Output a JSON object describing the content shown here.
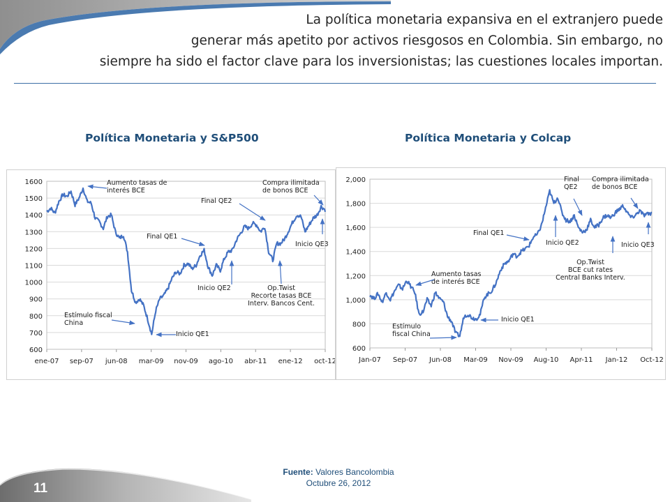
{
  "slide": {
    "title_lines": [
      "La política monetaria expansiva en el extranjero puede",
      "generar más apetito por activos riesgosos en Colombia. Sin embargo, no",
      "siempre ha sido el factor clave para los inversionistas; las cuestiones locales importan."
    ],
    "source_label": "Fuente:",
    "source_text": "Valores Bancolombia",
    "date": "Octubre 26, 2012",
    "page_number": "11"
  },
  "colors": {
    "line": "#4472c4",
    "title": "#1f4e79",
    "arrow": "#4472c4",
    "grid": "#d9d9d9"
  },
  "chart_data": [
    {
      "type": "line",
      "title": "Política Monetaria y S&P500",
      "x_ticks": [
        "ene-07",
        "sep-07",
        "jun-08",
        "mar-09",
        "nov-09",
        "ago-10",
        "abr-11",
        "ene-12",
        "oct-12"
      ],
      "x_range": [
        "2007-01",
        "2012-10"
      ],
      "ylim": [
        600,
        1600
      ],
      "y_ticks": [
        "600",
        "700",
        "800",
        "900",
        "1000",
        "1100",
        "1200",
        "1300",
        "1400",
        "1500",
        "1600"
      ],
      "grid": true,
      "series": [
        {
          "x": [
            "2007-01",
            "2007-02",
            "2007-03",
            "2007-04",
            "2007-05",
            "2007-06",
            "2007-07",
            "2007-08",
            "2007-09",
            "2007-10",
            "2007-11",
            "2007-12",
            "2008-01",
            "2008-02",
            "2008-03",
            "2008-04",
            "2008-05",
            "2008-06",
            "2008-07",
            "2008-08",
            "2008-09",
            "2008-10",
            "2008-11",
            "2008-12",
            "2009-01",
            "2009-02",
            "2009-03",
            "2009-04",
            "2009-05",
            "2009-06",
            "2009-07",
            "2009-08",
            "2009-09",
            "2009-10",
            "2009-11",
            "2009-12",
            "2010-01",
            "2010-02",
            "2010-03",
            "2010-04",
            "2010-05",
            "2010-06",
            "2010-07",
            "2010-08",
            "2010-09",
            "2010-10",
            "2010-11",
            "2010-12",
            "2011-01",
            "2011-02",
            "2011-03",
            "2011-04",
            "2011-05",
            "2011-06",
            "2011-07",
            "2011-08",
            "2011-09",
            "2011-10",
            "2011-11",
            "2011-12",
            "2012-01",
            "2012-02",
            "2012-03",
            "2012-04",
            "2012-05",
            "2012-06",
            "2012-07",
            "2012-08",
            "2012-09",
            "2012-10"
          ],
          "values": [
            1420,
            1440,
            1410,
            1480,
            1520,
            1510,
            1540,
            1460,
            1500,
            1560,
            1480,
            1470,
            1380,
            1360,
            1320,
            1390,
            1400,
            1300,
            1260,
            1280,
            1180,
            950,
            880,
            900,
            860,
            780,
            690,
            830,
            900,
            920,
            960,
            1020,
            1060,
            1050,
            1100,
            1110,
            1080,
            1100,
            1160,
            1190,
            1090,
            1040,
            1100,
            1070,
            1140,
            1180,
            1190,
            1250,
            1290,
            1330,
            1320,
            1350,
            1340,
            1300,
            1330,
            1180,
            1130,
            1230,
            1230,
            1260,
            1310,
            1360,
            1400,
            1390,
            1300,
            1340,
            1380,
            1400,
            1450,
            1430
          ]
        }
      ],
      "annotations": [
        "Aumento tasas de interés BCE",
        "Final QE2",
        "Compra ilimitada de bonos BCE",
        "Final QE1",
        "Inicio QE3",
        "Estímulo fiscal China",
        "Inicio QE2",
        "Op.Twist Recorte tasas BCE Interv. Bancos Cent.",
        "Inicio QE1"
      ]
    },
    {
      "type": "line",
      "title": "Política  Monetaria y Colcap",
      "x_ticks": [
        "Jan-07",
        "Sep-07",
        "Jun-08",
        "Mar-09",
        "Nov-09",
        "Aug-10",
        "Apr-11",
        "Jan-12",
        "Oct-12"
      ],
      "x_range": [
        "2007-01",
        "2012-10"
      ],
      "ylim": [
        600,
        2000
      ],
      "y_ticks": [
        "600",
        "800",
        "1,000",
        "1,200",
        "1,400",
        "1,600",
        "1,800",
        "2,000"
      ],
      "grid": true,
      "series": [
        {
          "x": [
            "2007-01",
            "2007-02",
            "2007-03",
            "2007-04",
            "2007-05",
            "2007-06",
            "2007-07",
            "2007-08",
            "2007-09",
            "2007-10",
            "2007-11",
            "2007-12",
            "2008-01",
            "2008-02",
            "2008-03",
            "2008-04",
            "2008-05",
            "2008-06",
            "2008-07",
            "2008-08",
            "2008-09",
            "2008-10",
            "2008-11",
            "2008-12",
            "2009-01",
            "2009-02",
            "2009-03",
            "2009-04",
            "2009-05",
            "2009-06",
            "2009-07",
            "2009-08",
            "2009-09",
            "2009-10",
            "2009-11",
            "2009-12",
            "2010-01",
            "2010-02",
            "2010-03",
            "2010-04",
            "2010-05",
            "2010-06",
            "2010-07",
            "2010-08",
            "2010-09",
            "2010-10",
            "2010-11",
            "2010-12",
            "2011-01",
            "2011-02",
            "2011-03",
            "2011-04",
            "2011-05",
            "2011-06",
            "2011-07",
            "2011-08",
            "2011-09",
            "2011-10",
            "2011-11",
            "2011-12",
            "2012-01",
            "2012-02",
            "2012-03",
            "2012-04",
            "2012-05",
            "2012-06",
            "2012-07",
            "2012-08",
            "2012-09",
            "2012-10"
          ],
          "values": [
            1040,
            1010,
            1050,
            980,
            1060,
            1000,
            1070,
            1120,
            1090,
            1160,
            1110,
            1060,
            880,
            900,
            1000,
            950,
            1060,
            1010,
            980,
            860,
            820,
            720,
            700,
            860,
            880,
            850,
            840,
            880,
            1020,
            1050,
            1080,
            1150,
            1250,
            1300,
            1320,
            1380,
            1360,
            1400,
            1420,
            1450,
            1520,
            1540,
            1620,
            1760,
            1900,
            1800,
            1850,
            1720,
            1660,
            1650,
            1700,
            1600,
            1560,
            1580,
            1660,
            1600,
            1620,
            1680,
            1700,
            1680,
            1720,
            1750,
            1780,
            1720,
            1680,
            1700,
            1740,
            1700,
            1710,
            1720
          ]
        }
      ],
      "annotations": [
        "Final QE2",
        "Compra ilimitada de bonos BCE",
        "Final QE1",
        "Inicio QE2",
        "Inicio QE3",
        "Aumento tasas de interés BCE",
        "Op.Twist BCE cut rates Central Banks Interv.",
        "Inicio QE1",
        "Estímulo fiscal China"
      ]
    }
  ]
}
